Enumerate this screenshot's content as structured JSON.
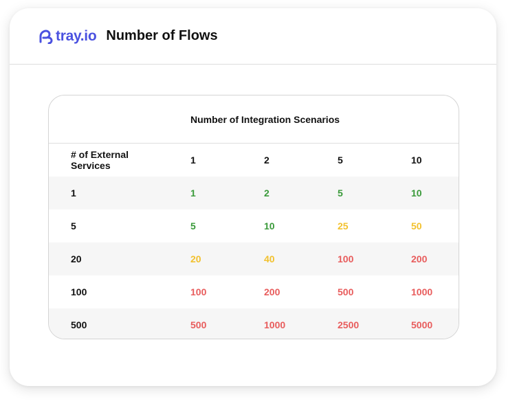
{
  "header": {
    "brand_text": "tray.io",
    "brand_icon": "tray-logo-icon",
    "title": "Number of Flows"
  },
  "colors": {
    "brand": "#4a51e0",
    "green": "#3a9a3a",
    "yellow": "#f2c12e",
    "red": "#e85c5c"
  },
  "table": {
    "scenario_title": "Number of Integration Scenarios",
    "services_label_line1": "# of External",
    "services_label_line2": "Services",
    "columns": [
      "1",
      "2",
      "5",
      "10"
    ],
    "rows": [
      {
        "label": "1",
        "values": [
          "1",
          "2",
          "5",
          "10"
        ],
        "levels": [
          "green",
          "green",
          "green",
          "green"
        ]
      },
      {
        "label": "5",
        "values": [
          "5",
          "10",
          "25",
          "50"
        ],
        "levels": [
          "green",
          "green",
          "yellow",
          "yellow"
        ]
      },
      {
        "label": "20",
        "values": [
          "20",
          "40",
          "100",
          "200"
        ],
        "levels": [
          "yellow",
          "yellow",
          "red",
          "red"
        ]
      },
      {
        "label": "100",
        "values": [
          "100",
          "200",
          "500",
          "1000"
        ],
        "levels": [
          "red",
          "red",
          "red",
          "red"
        ]
      },
      {
        "label": "500",
        "values": [
          "500",
          "1000",
          "2500",
          "5000"
        ],
        "levels": [
          "red",
          "red",
          "red",
          "red"
        ]
      }
    ]
  }
}
